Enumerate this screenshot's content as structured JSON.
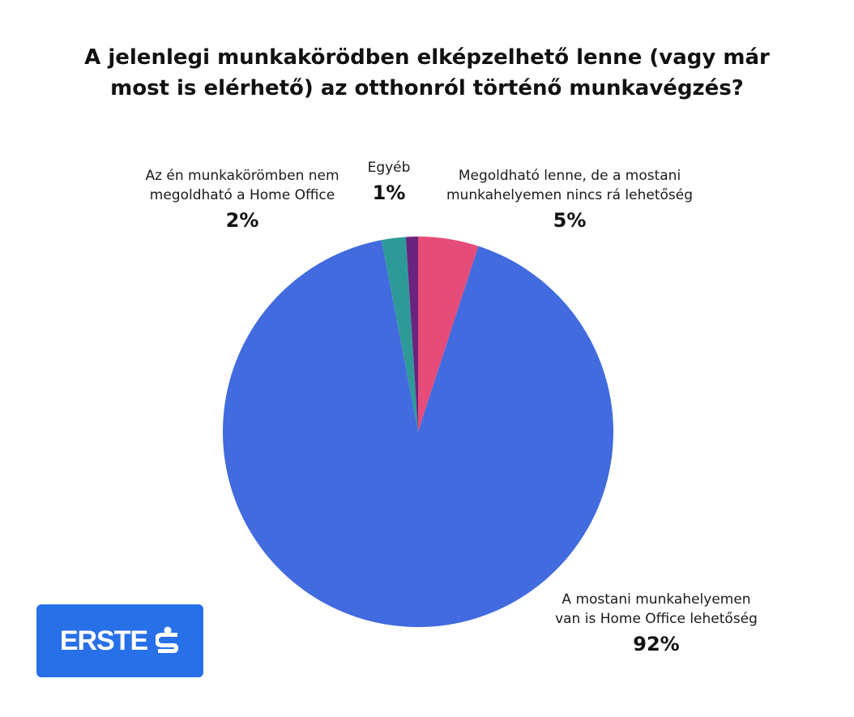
{
  "title": {
    "line1": "A jelenlegi munkakörödben elképzelhető lenne (vagy már",
    "line2": "most is elérhető) az otthonról történő munkavégzés?"
  },
  "chart_data": {
    "type": "pie",
    "title": "A jelenlegi munkakörödben elképzelhető lenne (vagy már most is elérhető) az otthonról történő munkavégzés?",
    "slices": [
      {
        "label_lines": [
          "Megoldható lenne, de a mostani",
          "munkahelyemen nincs rá lehetőség"
        ],
        "value": 5,
        "value_label": "5%",
        "color": "#E64C79"
      },
      {
        "label_lines": [
          "A mostani munkahelyemen",
          "van is Home Office lehetőség"
        ],
        "value": 92,
        "value_label": "92%",
        "color": "#416BDE"
      },
      {
        "label_lines": [
          "Az én munkakörömben nem",
          "megoldható a Home Office"
        ],
        "value": 2,
        "value_label": "2%",
        "color": "#2E9A98"
      },
      {
        "label_lines": [
          "Egyéb"
        ],
        "value": 1,
        "value_label": "1%",
        "color": "#6B2380"
      }
    ],
    "start": "top",
    "direction": "clockwise"
  },
  "logo": {
    "text": "ERSTE",
    "icon": "erste-s-icon",
    "background": "#2870E8"
  }
}
